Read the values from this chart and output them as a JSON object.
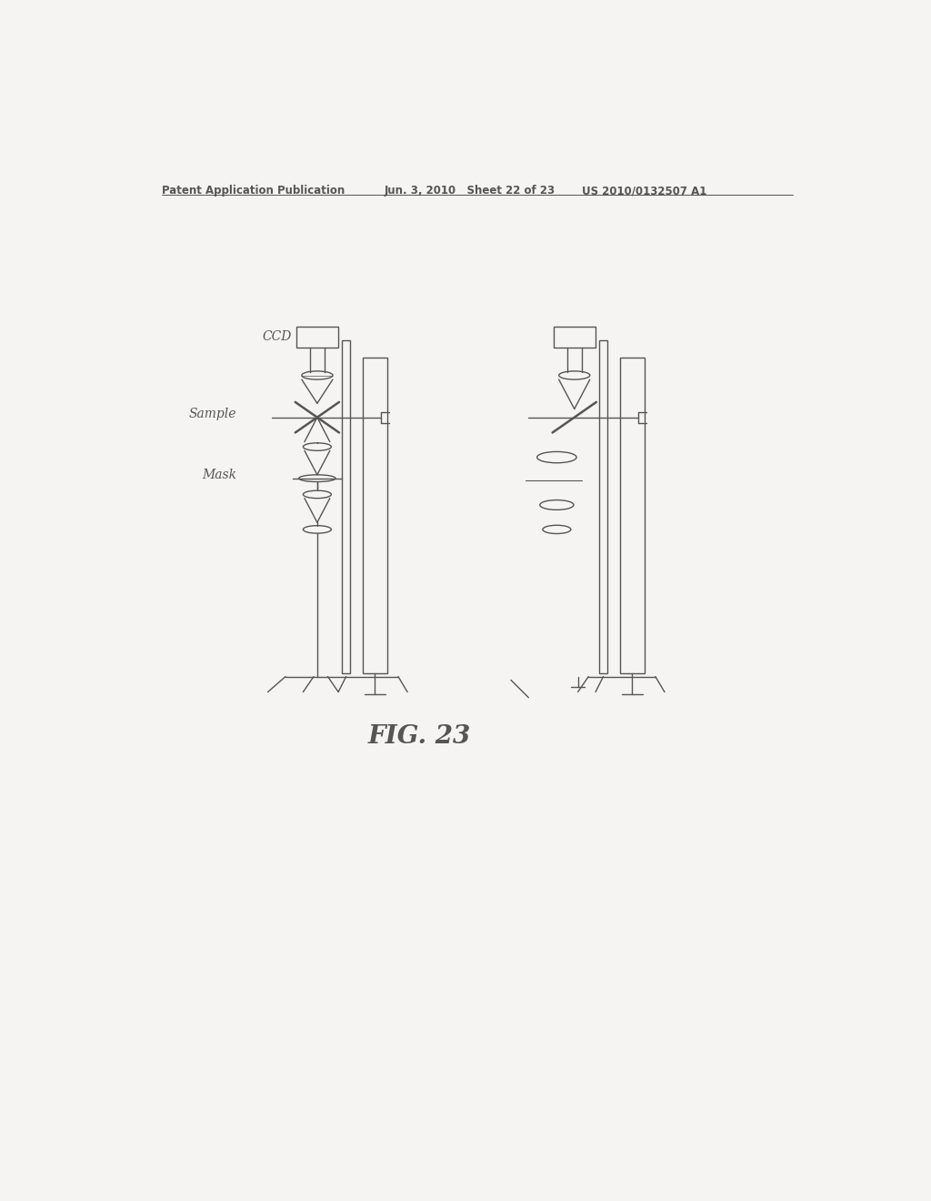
{
  "bg_color": "#f5f4f2",
  "line_color": "#555555",
  "text_color": "#555555",
  "header_left": "Patent Application Publication",
  "header_center": "Jun. 3, 2010   Sheet 22 of 23",
  "header_right": "US 2010/0132507 A1",
  "figure_label": "FIG. 23",
  "label_ccd": "CCD",
  "label_sample": "Sample",
  "label_mask": "Mask",
  "fig_width": 10.24,
  "fig_height": 13.2
}
